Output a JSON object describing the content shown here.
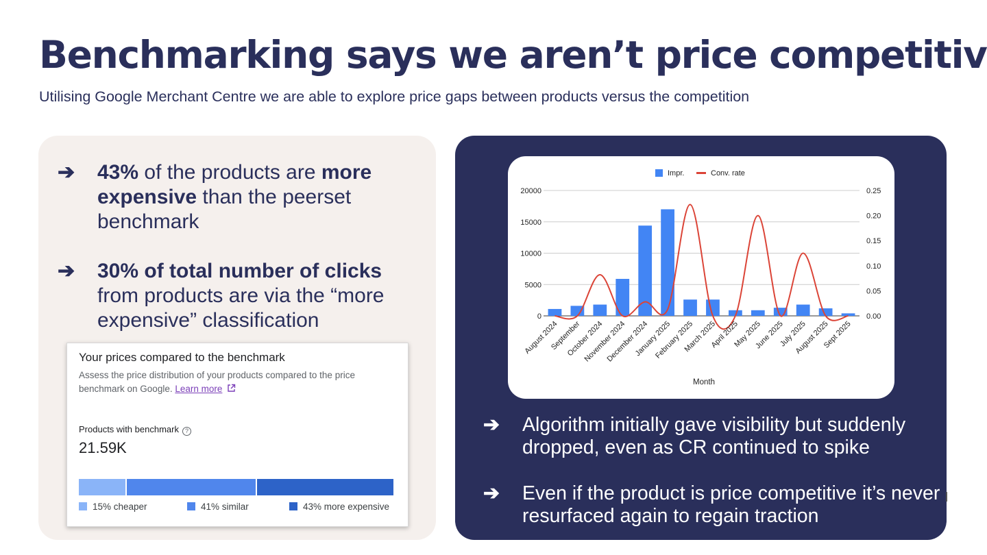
{
  "title": "Benchmarking says we aren’t price competitive",
  "subtitle": "Utilising Google Merchant Centre we are able to explore price gaps between products versus the competition",
  "left_bullets": [
    {
      "arrow": "➔",
      "bold1": "43%",
      "text1": " of the products are ",
      "bold2": "more expensive",
      "text2": " than the peerset benchmark"
    },
    {
      "arrow": "➔",
      "bold1": "30% of total number of clicks",
      "text1": " from products are via the “more expensive” classification"
    }
  ],
  "benchmark": {
    "title": "Your prices compared to the benchmark",
    "description": "Assess the price distribution of your products compared to the price benchmark on Google.",
    "learn_more": "Learn more",
    "external_icon": "external-link-icon",
    "label": "Products with benchmark",
    "help_icon": "help-icon",
    "help_glyph": "?",
    "value": "21.59K",
    "segments": [
      {
        "label": "15% cheaper",
        "share": 15,
        "color": "#8ab4f8"
      },
      {
        "label": "41% similar",
        "share": 41,
        "color": "#5086ec"
      },
      {
        "label": "43% more expensive",
        "share": 43,
        "color": "#2d63c8"
      }
    ]
  },
  "right_bullets": [
    {
      "arrow": "➔",
      "text": "Algorithm initially gave visibility  but suddenly dropped, even as CR continued to spike"
    },
    {
      "arrow": "➔",
      "text": "Even if the product is price competitive it’s never resurfaced again to regain traction"
    }
  ],
  "chart_data": {
    "type": "bar",
    "xlabel": "Month",
    "categories": [
      "August 2024",
      "September",
      "October 2024",
      "November 2024",
      "December 2024",
      "January 2025",
      "February 2025",
      "March 2025",
      "April 2025",
      "May 2025",
      "June 2025",
      "July 2025",
      "August 2025",
      "Sept 2025"
    ],
    "series": [
      {
        "name": "Impr.",
        "type": "bar",
        "axis": "left",
        "color": "#4285f4",
        "values": [
          1100,
          1600,
          1800,
          5900,
          14400,
          17000,
          2600,
          2600,
          900,
          900,
          1300,
          1800,
          1200,
          400
        ]
      },
      {
        "name": "Conv. rate",
        "type": "line",
        "axis": "right",
        "color": "#db4437",
        "values": [
          0.0,
          0.0,
          0.082,
          0.0,
          0.028,
          0.013,
          0.222,
          0.0,
          0.0,
          0.2,
          0.0,
          0.125,
          0.0,
          0.0
        ]
      }
    ],
    "y_left": {
      "ylim": [
        0,
        20000
      ],
      "ticks": [
        "0",
        "5000",
        "10000",
        "15000",
        "20000"
      ]
    },
    "y_right": {
      "ylim": [
        0,
        0.25
      ],
      "ticks": [
        "0.00",
        "0.05",
        "0.10",
        "0.15",
        "0.20",
        "0.25"
      ]
    },
    "legend": "top-center",
    "grid": true
  }
}
